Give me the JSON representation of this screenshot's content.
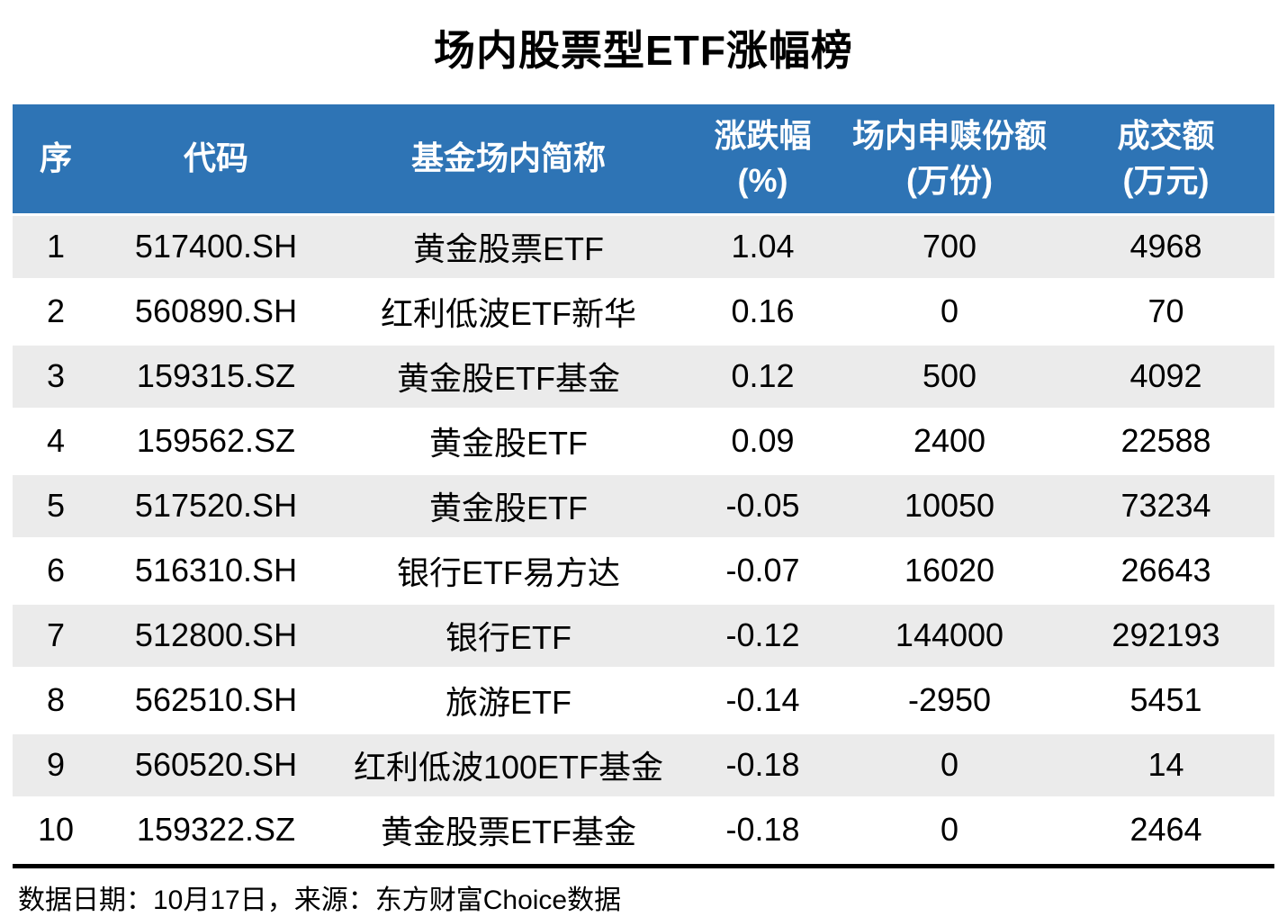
{
  "title": "场内股票型ETF涨幅榜",
  "chart_data": {
    "type": "table",
    "title": "场内股票型ETF涨幅榜",
    "columns": [
      {
        "id": "seq",
        "label": "序",
        "lines": [
          "序"
        ]
      },
      {
        "id": "code",
        "label": "代码",
        "lines": [
          "代码"
        ]
      },
      {
        "id": "name",
        "label": "基金场内简称",
        "lines": [
          "基金场内简称"
        ]
      },
      {
        "id": "change",
        "label": "涨跌幅(%)",
        "lines": [
          "涨跌幅",
          "(%)"
        ]
      },
      {
        "id": "shares",
        "label": "场内申赎份额(万份)",
        "lines": [
          "场内申赎份额",
          "(万份)"
        ]
      },
      {
        "id": "turnover",
        "label": "成交额(万元)",
        "lines": [
          "成交额",
          "(万元)"
        ]
      }
    ],
    "rows": [
      [
        1,
        "517400.SH",
        "黄金股票ETF",
        1.04,
        700,
        4968
      ],
      [
        2,
        "560890.SH",
        "红利低波ETF新华",
        0.16,
        0,
        70
      ],
      [
        3,
        "159315.SZ",
        "黄金股ETF基金",
        0.12,
        500,
        4092
      ],
      [
        4,
        "159562.SZ",
        "黄金股ETF",
        0.09,
        2400,
        22588
      ],
      [
        5,
        "517520.SH",
        "黄金股ETF",
        -0.05,
        10050,
        73234
      ],
      [
        6,
        "516310.SH",
        "银行ETF易方达",
        -0.07,
        16020,
        26643
      ],
      [
        7,
        "512800.SH",
        "银行ETF",
        -0.12,
        144000,
        292193
      ],
      [
        8,
        "562510.SH",
        "旅游ETF",
        -0.14,
        -2950,
        5451
      ],
      [
        9,
        "560520.SH",
        "红利低波100ETF基金",
        -0.18,
        0,
        14
      ],
      [
        10,
        "159322.SZ",
        "黄金股票ETF基金",
        -0.18,
        0,
        2464
      ]
    ]
  },
  "footer": {
    "text": "数据日期：10月17日，来源：东方财富Choice数据"
  },
  "colors": {
    "header_bg": "#2E74B5",
    "header_text": "#FFFFFF",
    "row_stripe_bg": "#EBEBEB",
    "body_text": "#000000",
    "divider": "#000000"
  }
}
